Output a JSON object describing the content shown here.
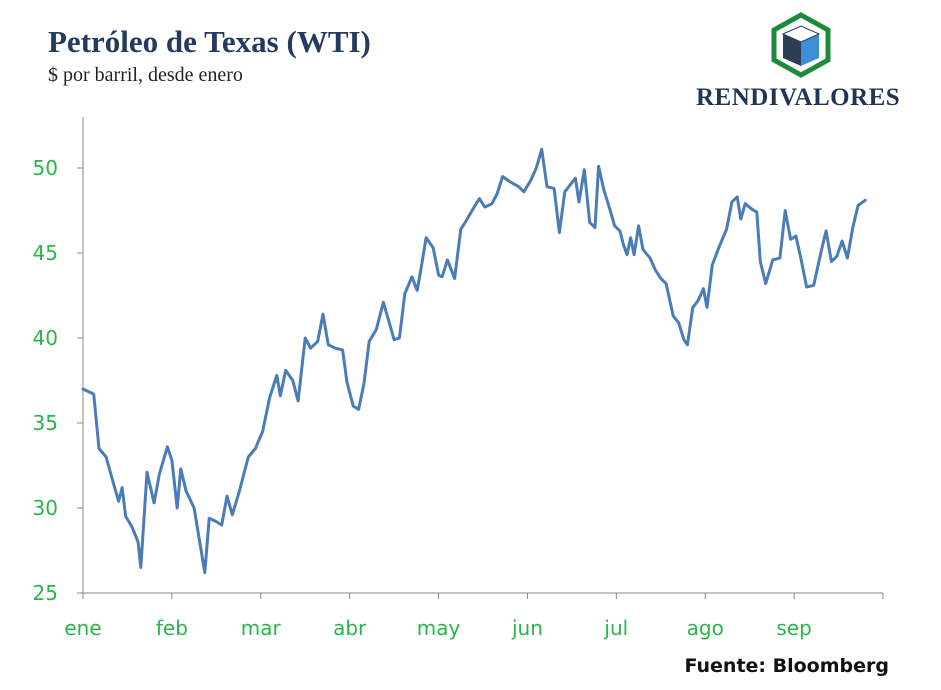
{
  "title": "Petróleo de Texas (WTI)",
  "subtitle": "$ por barril, desde enero",
  "brand": {
    "name": "RENDIVALORES",
    "colors": {
      "hexagon": "#1e8a3c",
      "cube_dark": "#2d3d52",
      "cube_blue": "#3b8fd6",
      "text": "#1f3554"
    }
  },
  "source": "Fuente: Bloomberg",
  "colors": {
    "line": "#4a7cb8",
    "tick_labels": "#2ab54a",
    "axis": "#888888"
  },
  "chart_data": {
    "type": "line",
    "title": "Petróleo de Texas (WTI)",
    "subtitle": "$ por barril, desde enero",
    "xlabel": "",
    "ylabel": "",
    "x_ticks": [
      "ene",
      "feb",
      "mar",
      "abr",
      "may",
      "jun",
      "jul",
      "ago",
      "sep"
    ],
    "xlim": [
      0,
      9
    ],
    "ylim": [
      25,
      53
    ],
    "y_ticks": [
      25,
      30,
      35,
      40,
      45,
      50
    ],
    "grid": false,
    "series": [
      {
        "values": [
          [
            0.0,
            37.0
          ],
          [
            0.12,
            36.7
          ],
          [
            0.18,
            33.5
          ],
          [
            0.26,
            33.0
          ],
          [
            0.34,
            31.5
          ],
          [
            0.4,
            30.4
          ],
          [
            0.44,
            31.2
          ],
          [
            0.48,
            29.5
          ],
          [
            0.55,
            28.9
          ],
          [
            0.62,
            28.0
          ],
          [
            0.65,
            26.5
          ],
          [
            0.72,
            32.1
          ],
          [
            0.8,
            30.3
          ],
          [
            0.86,
            32.0
          ],
          [
            0.95,
            33.6
          ],
          [
            1.0,
            32.8
          ],
          [
            1.06,
            30.0
          ],
          [
            1.1,
            32.3
          ],
          [
            1.16,
            31.0
          ],
          [
            1.25,
            30.0
          ],
          [
            1.32,
            27.8
          ],
          [
            1.37,
            26.2
          ],
          [
            1.42,
            29.4
          ],
          [
            1.5,
            29.2
          ],
          [
            1.56,
            29.0
          ],
          [
            1.62,
            30.7
          ],
          [
            1.68,
            29.6
          ],
          [
            1.76,
            31.0
          ],
          [
            1.86,
            33.0
          ],
          [
            1.94,
            33.5
          ],
          [
            2.02,
            34.5
          ],
          [
            2.1,
            36.5
          ],
          [
            2.18,
            37.8
          ],
          [
            2.22,
            36.6
          ],
          [
            2.28,
            38.1
          ],
          [
            2.36,
            37.5
          ],
          [
            2.42,
            36.3
          ],
          [
            2.5,
            40.0
          ],
          [
            2.56,
            39.4
          ],
          [
            2.64,
            39.8
          ],
          [
            2.7,
            41.4
          ],
          [
            2.76,
            39.6
          ],
          [
            2.84,
            39.4
          ],
          [
            2.92,
            39.3
          ],
          [
            2.97,
            37.4
          ],
          [
            3.04,
            36.0
          ],
          [
            3.1,
            35.8
          ],
          [
            3.16,
            37.3
          ],
          [
            3.22,
            39.8
          ],
          [
            3.3,
            40.5
          ],
          [
            3.38,
            42.1
          ],
          [
            3.44,
            41.0
          ],
          [
            3.5,
            39.9
          ],
          [
            3.56,
            40.0
          ],
          [
            3.62,
            42.6
          ],
          [
            3.7,
            43.6
          ],
          [
            3.76,
            42.8
          ],
          [
            3.8,
            44.0
          ],
          [
            3.86,
            45.9
          ],
          [
            3.94,
            45.3
          ],
          [
            4.0,
            43.7
          ],
          [
            4.04,
            43.6
          ],
          [
            4.1,
            44.6
          ],
          [
            4.18,
            43.5
          ],
          [
            4.25,
            46.4
          ],
          [
            4.3,
            46.8
          ],
          [
            4.4,
            47.7
          ],
          [
            4.46,
            48.2
          ],
          [
            4.52,
            47.7
          ],
          [
            4.6,
            47.9
          ],
          [
            4.66,
            48.5
          ],
          [
            4.72,
            49.5
          ],
          [
            4.8,
            49.2
          ],
          [
            4.9,
            48.9
          ],
          [
            4.96,
            48.6
          ],
          [
            5.04,
            49.3
          ],
          [
            5.1,
            50.0
          ],
          [
            5.16,
            51.1
          ],
          [
            5.22,
            48.9
          ],
          [
            5.3,
            48.8
          ],
          [
            5.36,
            46.2
          ],
          [
            5.42,
            48.6
          ],
          [
            5.48,
            49.0
          ],
          [
            5.54,
            49.4
          ],
          [
            5.58,
            48.0
          ],
          [
            5.64,
            49.9
          ],
          [
            5.7,
            46.8
          ],
          [
            5.76,
            46.5
          ],
          [
            5.8,
            50.1
          ],
          [
            5.86,
            48.7
          ],
          [
            5.92,
            47.7
          ],
          [
            5.98,
            46.6
          ],
          [
            6.04,
            46.3
          ],
          [
            6.08,
            45.5
          ],
          [
            6.12,
            44.9
          ],
          [
            6.16,
            45.9
          ],
          [
            6.2,
            44.9
          ],
          [
            6.25,
            46.6
          ],
          [
            6.3,
            45.2
          ],
          [
            6.38,
            44.7
          ],
          [
            6.44,
            44.0
          ],
          [
            6.5,
            43.5
          ],
          [
            6.56,
            43.2
          ],
          [
            6.64,
            41.3
          ],
          [
            6.7,
            40.9
          ],
          [
            6.76,
            39.9
          ],
          [
            6.8,
            39.6
          ],
          [
            6.86,
            41.8
          ],
          [
            6.92,
            42.2
          ],
          [
            6.98,
            42.9
          ],
          [
            7.02,
            41.8
          ],
          [
            7.08,
            44.3
          ],
          [
            7.16,
            45.4
          ],
          [
            7.24,
            46.4
          ],
          [
            7.3,
            48.0
          ],
          [
            7.36,
            48.3
          ],
          [
            7.4,
            47.0
          ],
          [
            7.45,
            47.9
          ],
          [
            7.52,
            47.6
          ],
          [
            7.58,
            47.4
          ],
          [
            7.62,
            44.5
          ],
          [
            7.68,
            43.2
          ],
          [
            7.76,
            44.6
          ],
          [
            7.84,
            44.7
          ],
          [
            7.9,
            47.5
          ],
          [
            7.96,
            45.8
          ],
          [
            8.02,
            46.0
          ],
          [
            8.08,
            44.6
          ],
          [
            8.14,
            43.0
          ],
          [
            8.22,
            43.1
          ],
          [
            8.3,
            45.0
          ],
          [
            8.36,
            46.3
          ],
          [
            8.42,
            44.5
          ],
          [
            8.48,
            44.8
          ],
          [
            8.54,
            45.7
          ],
          [
            8.6,
            44.7
          ],
          [
            8.66,
            46.5
          ],
          [
            8.72,
            47.8
          ],
          [
            8.8,
            48.1
          ]
        ]
      }
    ]
  }
}
